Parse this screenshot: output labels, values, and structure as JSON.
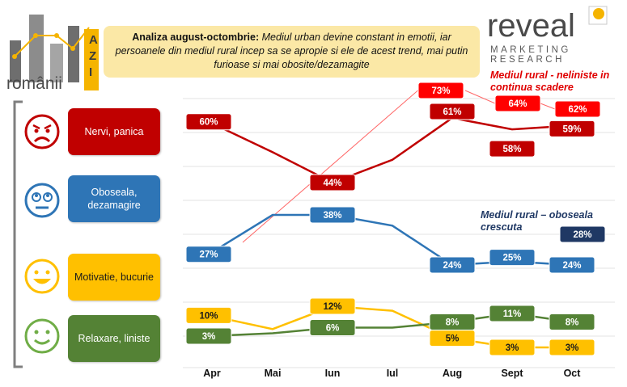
{
  "logo_left": {
    "wordmark": "românii",
    "vertical": "AZI",
    "colors": {
      "bars": "#6e6e6e",
      "accent": "#f5b400"
    }
  },
  "logo_right": {
    "wordmark": "reveal",
    "line1": "MARKETING",
    "line2": "RESEARCH",
    "colors": {
      "text": "#4a4a4a",
      "accent": "#f5b400"
    }
  },
  "banner": {
    "bold": "Analiza august-octombrie:",
    "italic": " Mediul urban devine constant in emotii, iar persoanele din mediul rural incep sa se apropie si ele de acest trend, mai putin furioase si mai obosite/dezamagite",
    "bg": "#fbe8a6"
  },
  "categories": [
    {
      "label": "Nervi, panica",
      "face": "angry-face-icon",
      "color": "#c00000",
      "face_color": "#c00000"
    },
    {
      "label": "Oboseala, dezamagire",
      "face": "tired-face-icon",
      "color": "#2e75b6",
      "face_color": "#2e75b6"
    },
    {
      "label": "Motivatie, bucurie",
      "face": "happy-face-icon",
      "color": "#ffc000",
      "face_color": "#ffc000"
    },
    {
      "label": "Relaxare, liniste",
      "face": "calm-face-icon",
      "color": "#548235",
      "face_color": "#70ad47"
    }
  ],
  "annotations": {
    "rural_nerves": "Mediul rural - neliniste in continua scadere",
    "rural_tired": "Mediul rural – oboseala crescuta",
    "rural_nerves_color": "#e00000",
    "rural_tired_color": "#1f3864"
  },
  "chart_data": {
    "type": "line",
    "title": "",
    "xlabel": "",
    "ylabel": "",
    "categories": [
      "Apr",
      "Mai",
      "Iun",
      "Iul",
      "Aug",
      "Sept",
      "Oct"
    ],
    "grid": "horizontal",
    "series": [
      {
        "name": "Nervi, panica",
        "color": "#c00000",
        "values": [
          60,
          52,
          44,
          50,
          61,
          58,
          59
        ],
        "labels": [
          "60%",
          null,
          "44%",
          null,
          "61%",
          "58%",
          "59%"
        ]
      },
      {
        "name": "Oboseala, dezamagire",
        "color": "#2e75b6",
        "values": [
          27,
          38,
          38,
          35,
          24,
          25,
          24
        ],
        "labels": [
          "27%",
          null,
          "38%",
          null,
          "24%",
          "25%",
          "24%"
        ]
      },
      {
        "name": "Motivatie, bucurie",
        "color": "#ffc000",
        "values": [
          10,
          7,
          12,
          11,
          5,
          3,
          3
        ],
        "labels": [
          "10%",
          null,
          "12%",
          null,
          "5%",
          "3%",
          "3%"
        ]
      },
      {
        "name": "Relaxare, liniste",
        "color": "#548235",
        "values": [
          3,
          4,
          6,
          6,
          8,
          11,
          8
        ],
        "labels": [
          "3%",
          null,
          "6%",
          null,
          "8%",
          "11%",
          "8%"
        ]
      }
    ],
    "rural_nerves": {
      "color": "#ff0000",
      "values": [
        null,
        null,
        null,
        null,
        73,
        64,
        62
      ],
      "labels": [
        null,
        null,
        null,
        null,
        "73%",
        "64%",
        "62%"
      ]
    },
    "rural_tired": {
      "color": "#1f3864",
      "values": [
        null,
        null,
        null,
        null,
        null,
        null,
        28
      ],
      "labels": [
        null,
        null,
        null,
        null,
        null,
        null,
        "28%"
      ]
    }
  }
}
